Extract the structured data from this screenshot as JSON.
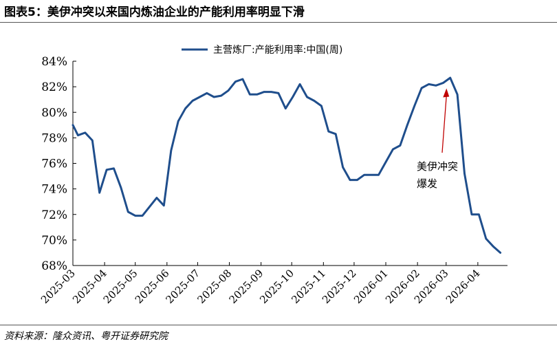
{
  "figure": {
    "title": "图表5：美伊冲突以来国内炼油企业的产能利用率明显下滑",
    "source": "资料来源：隆众资讯、粤开证券研究院"
  },
  "chart_data": {
    "type": "line",
    "title": "",
    "xlabel": "",
    "ylabel": "",
    "x_ticks": [
      "2025-03",
      "2025-04",
      "2025-05",
      "2025-06",
      "2025-07",
      "2025-08",
      "2025-09",
      "2025-10",
      "2025-11",
      "2025-12",
      "2026-01",
      "2026-02",
      "2026-03",
      "2026-04"
    ],
    "y_ticks": [
      "68%",
      "70%",
      "72%",
      "74%",
      "76%",
      "78%",
      "80%",
      "82%",
      "84%"
    ],
    "ylim": [
      68,
      84
    ],
    "grid": false,
    "legend": "top-center",
    "series": [
      {
        "name": "主营炼厂:产能利用率:中国(周)",
        "color": "#1f4e8c",
        "x": [
          "2025-03-01",
          "2025-03-06",
          "2025-03-13",
          "2025-03-20",
          "2025-03-27",
          "2025-04-03",
          "2025-04-10",
          "2025-04-17",
          "2025-04-24",
          "2025-05-01",
          "2025-05-08",
          "2025-05-15",
          "2025-05-22",
          "2025-05-29",
          "2025-06-05",
          "2025-06-12",
          "2025-06-19",
          "2025-06-26",
          "2025-07-03",
          "2025-07-10",
          "2025-07-17",
          "2025-07-24",
          "2025-07-31",
          "2025-08-07",
          "2025-08-14",
          "2025-08-21",
          "2025-08-28",
          "2025-09-04",
          "2025-09-11",
          "2025-09-18",
          "2025-09-25",
          "2025-10-02",
          "2025-10-09",
          "2025-10-16",
          "2025-10-23",
          "2025-10-30",
          "2025-11-06",
          "2025-11-13",
          "2025-11-20",
          "2025-11-27",
          "2025-12-04",
          "2025-12-11",
          "2025-12-18",
          "2025-12-25",
          "2026-01-01",
          "2026-01-08",
          "2026-01-15",
          "2026-01-22",
          "2026-01-29",
          "2026-02-05",
          "2026-02-12",
          "2026-02-19",
          "2026-02-26",
          "2026-03-05",
          "2026-03-12",
          "2026-03-19",
          "2026-03-26",
          "2026-04-02",
          "2026-04-09",
          "2026-04-16",
          "2026-04-23"
        ],
        "values": [
          79.0,
          78.2,
          78.4,
          77.8,
          73.7,
          75.5,
          75.6,
          74.1,
          72.2,
          71.9,
          71.9,
          72.6,
          73.3,
          72.7,
          77.0,
          79.3,
          80.3,
          80.9,
          81.2,
          81.5,
          81.2,
          81.3,
          81.7,
          82.4,
          82.6,
          81.4,
          81.4,
          81.6,
          81.6,
          81.5,
          80.3,
          81.2,
          82.2,
          81.2,
          80.9,
          80.5,
          78.5,
          78.3,
          75.7,
          74.7,
          74.7,
          75.1,
          75.1,
          75.1,
          76.1,
          77.1,
          77.4,
          79.0,
          80.5,
          81.9,
          82.2,
          82.1,
          82.3,
          82.7,
          81.4,
          75.2,
          72.0,
          72.0,
          70.1,
          69.5,
          69.0
        ]
      }
    ],
    "annotations": [
      {
        "line1": "美伊冲突",
        "line2": "爆发",
        "arrow_color": "#c00000",
        "points_to": "2026-03-02"
      }
    ]
  }
}
